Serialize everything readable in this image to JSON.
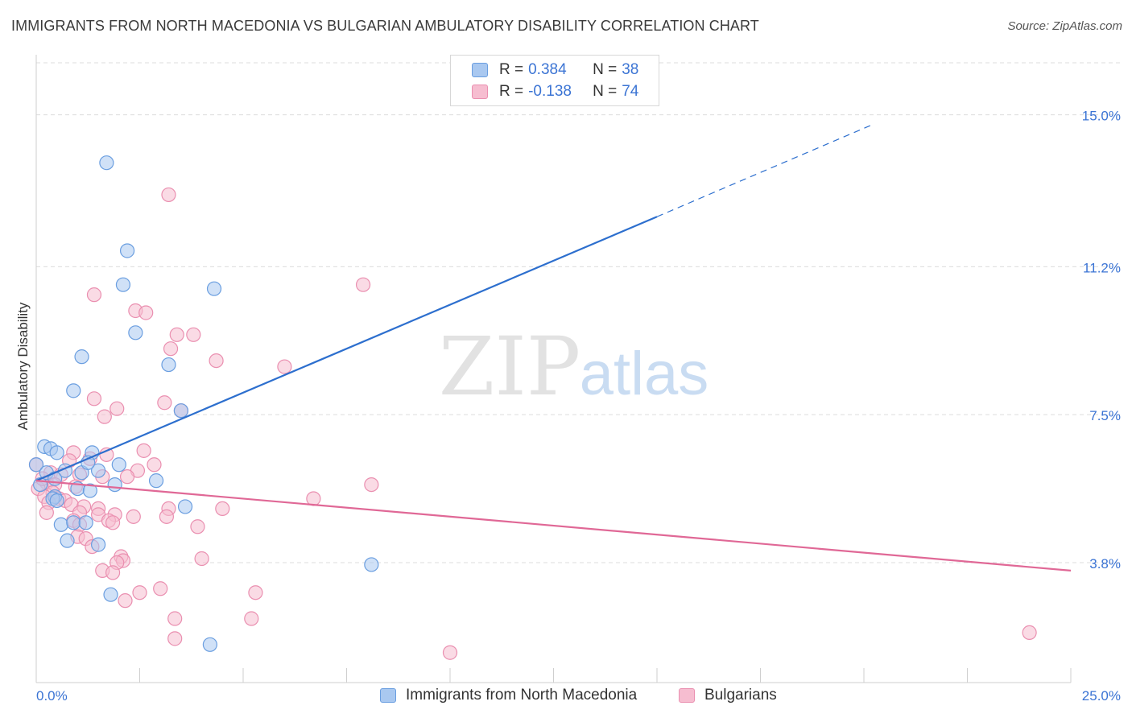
{
  "title": "IMMIGRANTS FROM NORTH MACEDONIA VS BULGARIAN AMBULATORY DISABILITY CORRELATION CHART",
  "source": "Source: ZipAtlas.com",
  "watermark": {
    "zip": "ZIP",
    "atlas": "atlas"
  },
  "colors": {
    "blue_fill": "#a9c8f0",
    "blue_stroke": "#6a9ee0",
    "blue_line": "#2d6fce",
    "pink_fill": "#f6bdd0",
    "pink_stroke": "#ea8fb0",
    "pink_line": "#e06896",
    "tick_label": "#3b74d4",
    "grid": "#dcdcdc"
  },
  "legend": {
    "rows": [
      {
        "r_label": "R =",
        "r_value": "0.384",
        "n_label": "N =",
        "n_value": "38",
        "series": "blue"
      },
      {
        "r_label": "R =",
        "r_value": "-0.138",
        "n_label": "N =",
        "n_value": "74",
        "series": "pink"
      }
    ]
  },
  "bottom_legend": [
    {
      "label": "Immigrants from North Macedonia",
      "series": "blue"
    },
    {
      "label": "Bulgarians",
      "series": "pink"
    }
  ],
  "chart_data": {
    "type": "scatter",
    "title": "IMMIGRANTS FROM NORTH MACEDONIA VS BULGARIAN AMBULATORY DISABILITY CORRELATION CHART",
    "xlabel": "",
    "ylabel": "Ambulatory Disability",
    "xlim": [
      0,
      25
    ],
    "ylim": [
      0.8,
      16.3
    ],
    "x_tick_labels": [
      {
        "value": 0,
        "label": "0.0%"
      },
      {
        "value": 25,
        "label": "25.0%"
      }
    ],
    "y_ticks": [
      {
        "value": 3.8,
        "label": "3.8%"
      },
      {
        "value": 7.5,
        "label": "7.5%"
      },
      {
        "value": 11.2,
        "label": "11.2%"
      },
      {
        "value": 15.0,
        "label": "15.0%"
      }
    ],
    "x_minor_ticks": [
      2.5,
      5,
      7.5,
      10,
      12.5,
      15,
      17.5,
      20,
      22.5
    ],
    "series": [
      {
        "name": "Immigrants from North Macedonia",
        "color": "blue",
        "trend": {
          "x0": 0.0,
          "y0": 5.85,
          "x1": 15.0,
          "y1": 12.45,
          "dash_x1": 20.2,
          "dash_y1": 14.75
        },
        "points": [
          {
            "x": 1.7,
            "y": 13.8
          },
          {
            "x": 2.2,
            "y": 11.6
          },
          {
            "x": 2.1,
            "y": 10.75
          },
          {
            "x": 4.3,
            "y": 10.65
          },
          {
            "x": 2.4,
            "y": 9.55
          },
          {
            "x": 1.1,
            "y": 8.95
          },
          {
            "x": 3.2,
            "y": 8.75
          },
          {
            "x": 0.9,
            "y": 8.1
          },
          {
            "x": 3.5,
            "y": 7.6
          },
          {
            "x": 0.2,
            "y": 6.7
          },
          {
            "x": 0.35,
            "y": 6.65
          },
          {
            "x": 0.5,
            "y": 6.55
          },
          {
            "x": 1.35,
            "y": 6.55
          },
          {
            "x": 0.0,
            "y": 6.25
          },
          {
            "x": 2.0,
            "y": 6.25
          },
          {
            "x": 0.25,
            "y": 6.05
          },
          {
            "x": 0.7,
            "y": 6.1
          },
          {
            "x": 1.1,
            "y": 6.05
          },
          {
            "x": 1.5,
            "y": 6.1
          },
          {
            "x": 0.45,
            "y": 5.9
          },
          {
            "x": 2.9,
            "y": 5.85
          },
          {
            "x": 0.1,
            "y": 5.75
          },
          {
            "x": 1.9,
            "y": 5.75
          },
          {
            "x": 1.0,
            "y": 5.65
          },
          {
            "x": 0.45,
            "y": 5.45
          },
          {
            "x": 1.3,
            "y": 5.6
          },
          {
            "x": 0.4,
            "y": 5.4
          },
          {
            "x": 0.5,
            "y": 5.35
          },
          {
            "x": 3.6,
            "y": 5.2
          },
          {
            "x": 0.6,
            "y": 4.75
          },
          {
            "x": 0.9,
            "y": 4.8
          },
          {
            "x": 1.2,
            "y": 4.8
          },
          {
            "x": 0.75,
            "y": 4.35
          },
          {
            "x": 1.5,
            "y": 4.25
          },
          {
            "x": 8.1,
            "y": 3.75
          },
          {
            "x": 1.8,
            "y": 3.0
          },
          {
            "x": 4.2,
            "y": 1.75
          },
          {
            "x": 1.25,
            "y": 6.3
          }
        ]
      },
      {
        "name": "Bulgarians",
        "color": "pink",
        "trend": {
          "x0": 0.0,
          "y0": 5.85,
          "x1": 25.0,
          "y1": 3.6
        },
        "points": [
          {
            "x": 3.2,
            "y": 13.0
          },
          {
            "x": 7.9,
            "y": 10.75
          },
          {
            "x": 1.4,
            "y": 10.5
          },
          {
            "x": 2.4,
            "y": 10.1
          },
          {
            "x": 2.65,
            "y": 10.05
          },
          {
            "x": 3.4,
            "y": 9.5
          },
          {
            "x": 3.8,
            "y": 9.5
          },
          {
            "x": 3.25,
            "y": 9.15
          },
          {
            "x": 4.35,
            "y": 8.85
          },
          {
            "x": 6.0,
            "y": 8.7
          },
          {
            "x": 1.4,
            "y": 7.9
          },
          {
            "x": 3.1,
            "y": 7.8
          },
          {
            "x": 1.95,
            "y": 7.65
          },
          {
            "x": 3.5,
            "y": 7.6
          },
          {
            "x": 1.65,
            "y": 7.45
          },
          {
            "x": 2.6,
            "y": 6.6
          },
          {
            "x": 0.9,
            "y": 6.55
          },
          {
            "x": 1.7,
            "y": 6.5
          },
          {
            "x": 0.8,
            "y": 6.35
          },
          {
            "x": 1.3,
            "y": 6.4
          },
          {
            "x": 0.0,
            "y": 6.25
          },
          {
            "x": 2.85,
            "y": 6.25
          },
          {
            "x": 2.45,
            "y": 6.1
          },
          {
            "x": 0.35,
            "y": 6.05
          },
          {
            "x": 0.6,
            "y": 6.0
          },
          {
            "x": 1.05,
            "y": 6.0
          },
          {
            "x": 1.6,
            "y": 5.95
          },
          {
            "x": 2.2,
            "y": 5.95
          },
          {
            "x": 0.25,
            "y": 5.8
          },
          {
            "x": 0.45,
            "y": 5.75
          },
          {
            "x": 0.95,
            "y": 5.7
          },
          {
            "x": 0.05,
            "y": 5.65
          },
          {
            "x": 0.4,
            "y": 5.55
          },
          {
            "x": 8.1,
            "y": 5.75
          },
          {
            "x": 0.2,
            "y": 5.45
          },
          {
            "x": 0.55,
            "y": 5.4
          },
          {
            "x": 0.7,
            "y": 5.35
          },
          {
            "x": 0.3,
            "y": 5.3
          },
          {
            "x": 6.7,
            "y": 5.4
          },
          {
            "x": 0.85,
            "y": 5.25
          },
          {
            "x": 1.15,
            "y": 5.2
          },
          {
            "x": 1.5,
            "y": 5.15
          },
          {
            "x": 3.2,
            "y": 5.15
          },
          {
            "x": 4.5,
            "y": 5.15
          },
          {
            "x": 0.25,
            "y": 5.05
          },
          {
            "x": 1.05,
            "y": 5.05
          },
          {
            "x": 1.5,
            "y": 5.0
          },
          {
            "x": 1.9,
            "y": 5.0
          },
          {
            "x": 2.35,
            "y": 4.95
          },
          {
            "x": 3.15,
            "y": 4.95
          },
          {
            "x": 0.9,
            "y": 4.85
          },
          {
            "x": 1.75,
            "y": 4.85
          },
          {
            "x": 1.85,
            "y": 4.8
          },
          {
            "x": 1.05,
            "y": 4.75
          },
          {
            "x": 3.9,
            "y": 4.7
          },
          {
            "x": 1.0,
            "y": 4.45
          },
          {
            "x": 1.2,
            "y": 4.4
          },
          {
            "x": 1.35,
            "y": 4.2
          },
          {
            "x": 2.05,
            "y": 3.95
          },
          {
            "x": 2.1,
            "y": 3.85
          },
          {
            "x": 4.0,
            "y": 3.9
          },
          {
            "x": 1.95,
            "y": 3.8
          },
          {
            "x": 1.6,
            "y": 3.6
          },
          {
            "x": 1.85,
            "y": 3.55
          },
          {
            "x": 3.0,
            "y": 3.15
          },
          {
            "x": 2.5,
            "y": 3.05
          },
          {
            "x": 5.3,
            "y": 3.05
          },
          {
            "x": 2.15,
            "y": 2.85
          },
          {
            "x": 3.35,
            "y": 2.4
          },
          {
            "x": 5.2,
            "y": 2.4
          },
          {
            "x": 3.35,
            "y": 1.9
          },
          {
            "x": 24.0,
            "y": 2.05
          },
          {
            "x": 10.0,
            "y": 1.55
          },
          {
            "x": 0.15,
            "y": 5.9
          }
        ]
      }
    ]
  }
}
